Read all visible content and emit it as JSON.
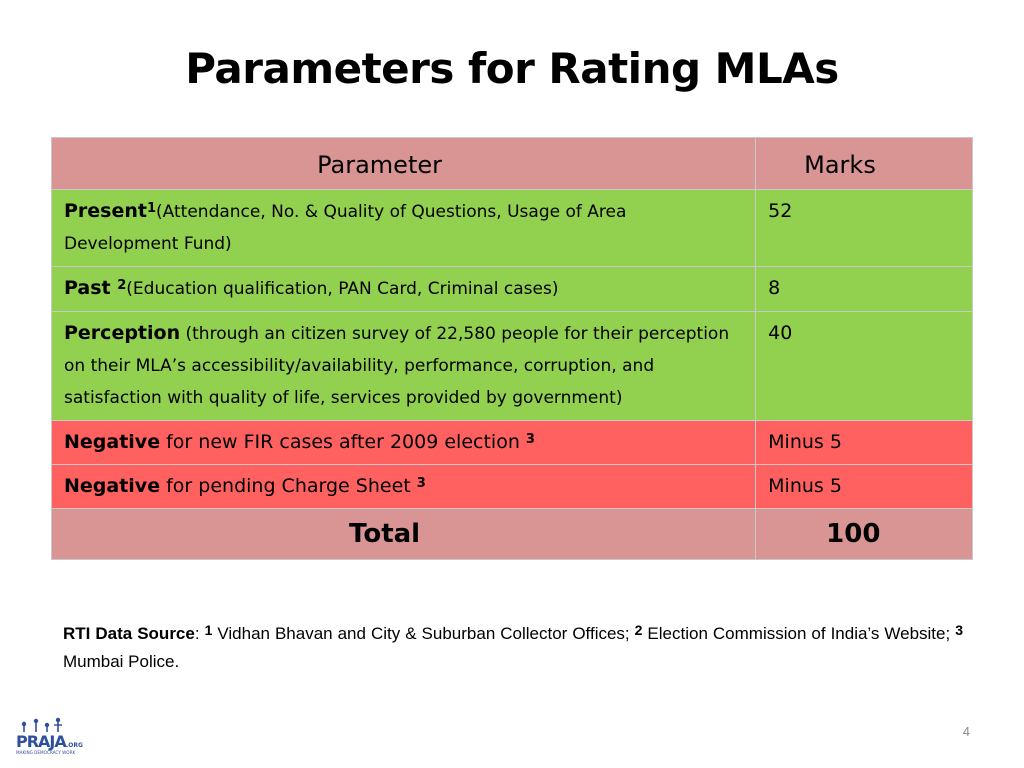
{
  "slide": {
    "title": "Parameters for Rating MLAs",
    "page_number": "4"
  },
  "table": {
    "header": {
      "parameter": "Parameter",
      "marks": "Marks"
    },
    "rows": [
      {
        "name": "Present",
        "ref": "1",
        "description": "(Attendance, No. & Quality of Questions, Usage of Area Development Fund)",
        "marks": "52",
        "status": "green"
      },
      {
        "name": "Past ",
        "ref": "2",
        "description": "(Education qualification, PAN Card, Criminal cases)",
        "marks": "8",
        "status": "green"
      },
      {
        "name": "Perception",
        "ref": "",
        "description": " (through an citizen survey of 22,580 people for their perception on their MLA’s accessibility/availability, performance, corruption, and satisfaction with quality of life, services provided by government)",
        "marks": "40",
        "status": "green"
      },
      {
        "name": "Negative",
        "ref": "3",
        "description": " for new FIR cases after 2009 election ",
        "marks": "Minus 5",
        "status": "red"
      },
      {
        "name": "Negative",
        "ref": "3",
        "description": " for pending Charge Sheet ",
        "marks": "Minus 5",
        "status": "red"
      }
    ],
    "total": {
      "label": "Total",
      "value": "100"
    }
  },
  "source": {
    "label": "RTI Data Source",
    "separator": ": ",
    "refs": [
      {
        "ref": "1",
        "text": " Vidhan Bhavan and City & Suburban Collector Offices; "
      },
      {
        "ref": "2",
        "text": " Election Commission of India’s Website; "
      },
      {
        "ref": "3",
        "text": " Mumbai Police."
      }
    ]
  },
  "logo": {
    "text": "PRAJA",
    "suffix": ".ORG",
    "tagline": "MAKING DEMOCRACY WORK"
  },
  "colors": {
    "header_bg": "#d99594",
    "green_row": "#92d050",
    "red_row": "#ff6161",
    "logo_blue": "#2f4f9e"
  }
}
